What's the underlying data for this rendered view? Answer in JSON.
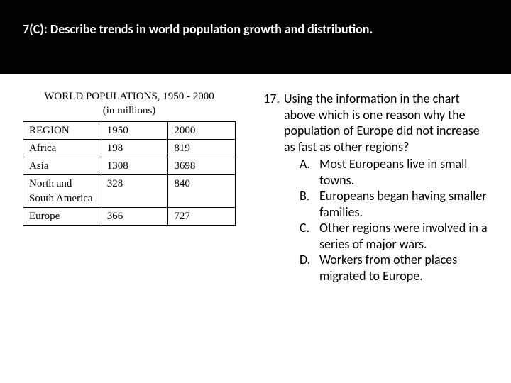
{
  "header": {
    "text": "7(C): Describe trends in world population growth and distribution."
  },
  "table": {
    "title_line1": "WORLD POPULATIONS, 1950 - 2000",
    "title_line2": "(in millions)",
    "columns": {
      "region": "REGION",
      "y1950": "1950",
      "y2000": "2000"
    },
    "rows": [
      {
        "region": "Africa",
        "y1950": "198",
        "y2000": "819"
      },
      {
        "region": "Asia",
        "y1950": "1308",
        "y2000": "3698"
      },
      {
        "region": "North and South America",
        "y1950": "328",
        "y2000": "840"
      },
      {
        "region": "Europe",
        "y1950": "366",
        "y2000": "727"
      }
    ]
  },
  "question": {
    "number": "17.",
    "stem": "Using the information in the chart above which is one reason why the population of Europe did not increase as fast as other regions?",
    "options": [
      {
        "letter": "A.",
        "text": "Most Europeans live in small towns."
      },
      {
        "letter": "B.",
        "text": "Europeans began having smaller families."
      },
      {
        "letter": "C.",
        "text": "Other regions were involved in a series of major wars."
      },
      {
        "letter": "D.",
        "text": "Workers from other places migrated to Europe."
      }
    ]
  }
}
